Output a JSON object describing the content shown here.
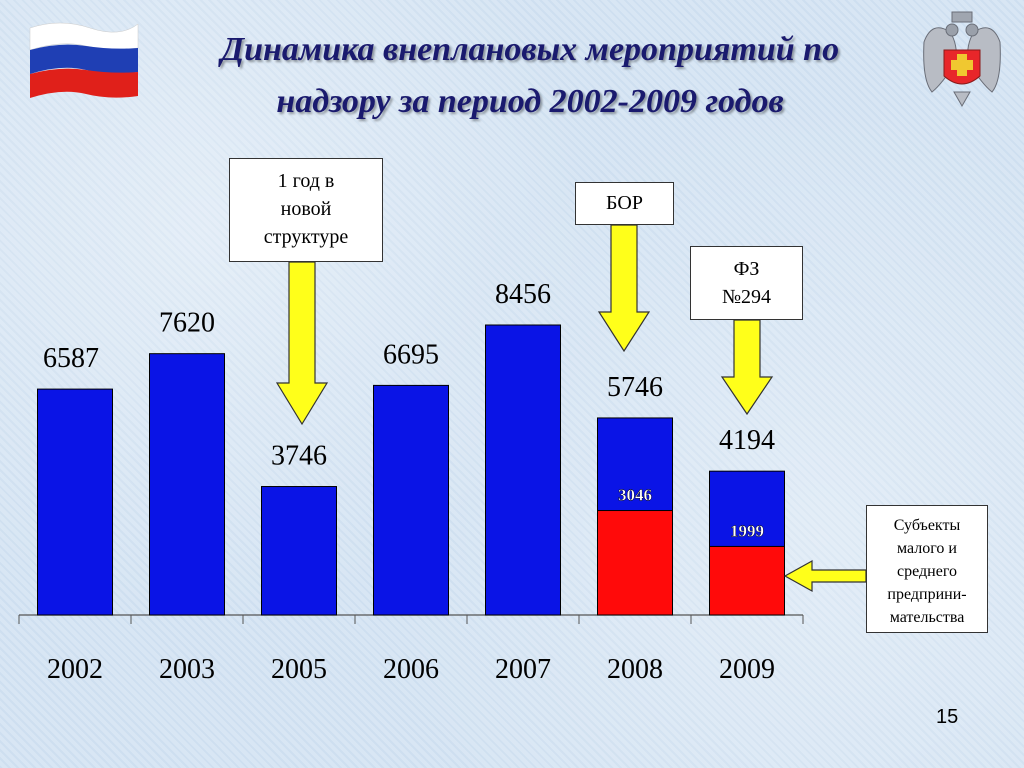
{
  "slide": {
    "title_line1": "Динамика внеплановых мероприятий по",
    "title_line2": "надзору за период 2002-2009 годов",
    "page_number": "15"
  },
  "callouts": {
    "new_structure": [
      "1 год в",
      "новой",
      "структуре"
    ],
    "bor": "БОР",
    "fz": [
      "ФЗ",
      "№294"
    ],
    "sme": [
      "Субъекты",
      "малого и",
      "среднего",
      "предприни-",
      "мательства"
    ]
  },
  "colors": {
    "bar_total": "#0a14e6",
    "bar_sme": "#ff0a0a",
    "arrow": "#ffff1a",
    "title": "#1a1a6e"
  },
  "chart_data": {
    "type": "bar",
    "categories": [
      "2002",
      "2003",
      "2005",
      "2006",
      "2007",
      "2008",
      "2009"
    ],
    "series": [
      {
        "values": [
          6587,
          7620,
          3746,
          6695,
          8456,
          5746,
          4194
        ]
      },
      {
        "values": [
          null,
          null,
          null,
          null,
          null,
          3046,
          1999
        ]
      }
    ],
    "ylim": [
      0,
      9500
    ],
    "grid": false
  }
}
